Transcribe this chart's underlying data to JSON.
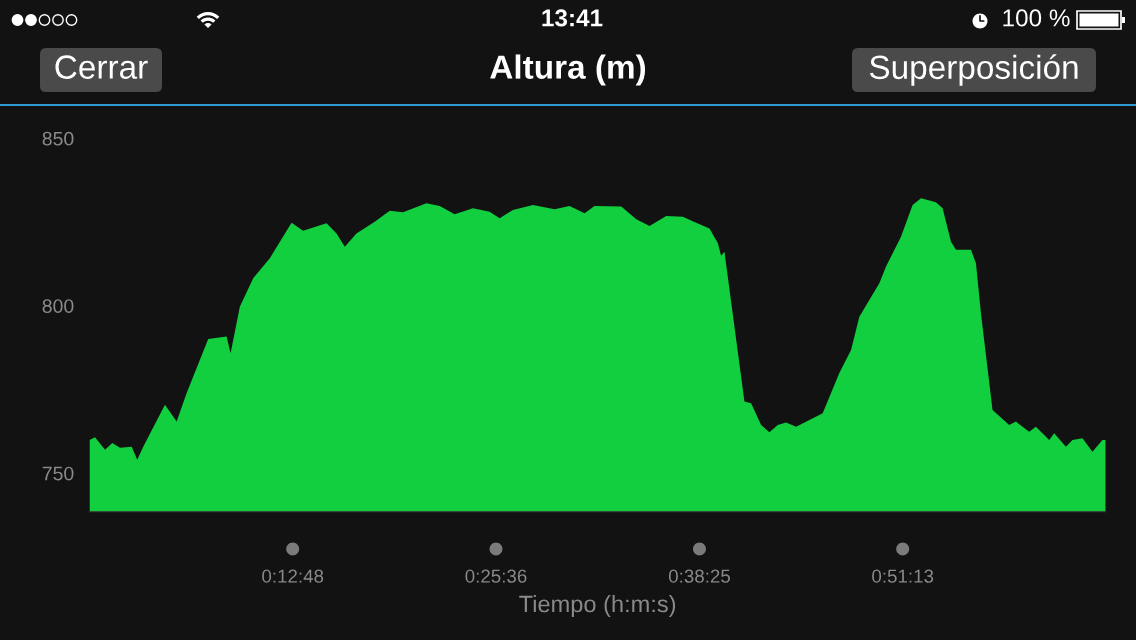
{
  "chart_data": {
    "type": "area",
    "title": "Altura (m)",
    "xlabel": "Tiempo (h:m:s)",
    "annotations": [
      "13:41",
      "100 %",
      "Cerrar",
      "Superposición"
    ],
    "x": [
      0,
      0.0058,
      0.0163,
      0.0239,
      0.032,
      0.0443,
      0.0501,
      0.0564,
      0.0792,
      0.0915,
      0.1019,
      0.1246,
      0.1439,
      0.1481,
      0.1578,
      0.1718,
      0.1893,
      0.2121,
      0.2242,
      0.2488,
      0.2593,
      0.268,
      0.2802,
      0.2994,
      0.3152,
      0.3291,
      0.3537,
      0.3676,
      0.3833,
      0.4025,
      0.42,
      0.4305,
      0.4445,
      0.4655,
      0.4882,
      0.5039,
      0.5197,
      0.5302,
      0.5582,
      0.5739,
      0.5879,
      0.6054,
      0.6228,
      0.6368,
      0.6508,
      0.6595,
      0.663,
      0.6665,
      0.6875,
      0.6945,
      0.705,
      0.7137,
      0.7224,
      0.7312,
      0.7417,
      0.7696,
      0.7871,
      0.7994,
      0.8081,
      0.8186,
      0.8291,
      0.8361,
      0.8518,
      0.864,
      0.8728,
      0.8885,
      0.8955,
      0.9043,
      0.9095,
      0.9253,
      0.9305,
      0.9357,
      0.9479,
      0.9654,
      0.9725,
      0.9864,
      0.9934,
      1.0074,
      1.0126,
      1.0249,
      1.0318,
      1.0423,
      1.0528,
      1.0633,
      1.0667
    ],
    "values": [
      759.9,
      760.7,
      757.0,
      759.0,
      757.6,
      757.9,
      754.0,
      757.9,
      770.4,
      765.4,
      773.9,
      790.1,
      790.8,
      785.8,
      799.7,
      808.2,
      814.2,
      824.8,
      822.4,
      824.6,
      821.6,
      817.6,
      821.6,
      825.1,
      828.4,
      827.9,
      830.6,
      829.8,
      827.3,
      829.1,
      828.1,
      826.1,
      828.6,
      830.1,
      828.8,
      829.8,
      827.6,
      829.8,
      829.6,
      825.8,
      823.8,
      826.8,
      826.6,
      824.8,
      823.1,
      818.7,
      814.9,
      816.1,
      771.4,
      770.9,
      764.4,
      762.2,
      764.4,
      765.1,
      763.9,
      767.9,
      779.9,
      786.8,
      796.7,
      801.7,
      806.7,
      811.7,
      820.6,
      830.1,
      832.1,
      830.9,
      829.1,
      819.1,
      816.7,
      816.7,
      812.7,
      797.8,
      768.9,
      764.4,
      765.4,
      762.4,
      763.9,
      759.9,
      761.9,
      757.9,
      759.9,
      760.4,
      756.4,
      759.9,
      759.9
    ],
    "color": "#11cf3f",
    "xlim": [
      0,
      1.0667
    ],
    "ylim": [
      738.5,
      850
    ],
    "xticks": [
      {
        "value": 0.2133,
        "label": "0:12:48"
      },
      {
        "value": 0.4267,
        "label": "0:25:36"
      },
      {
        "value": 0.6403,
        "label": "0:38:25"
      },
      {
        "value": 0.8536,
        "label": "0:51:13"
      }
    ],
    "yticks": [
      750,
      800,
      850
    ]
  }
}
